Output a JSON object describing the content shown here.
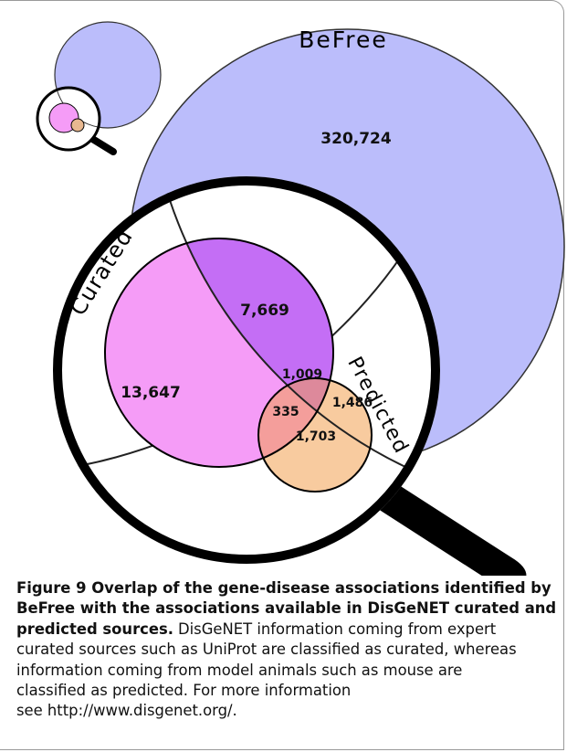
{
  "figure": {
    "labels": {
      "befree": "BeFree",
      "curated": "Curated",
      "predicted": "Predicted"
    },
    "regions": {
      "befree_only": "320,724",
      "befree_curated": "7,669",
      "curated_only": "13,647",
      "all_three": "1,009",
      "befree_predicted": "1,486",
      "curated_predicted": "335",
      "predicted_only": "1,703"
    },
    "caption": {
      "title_lines": [
        "Figure 9 Overlap of the gene-disease associations identified by",
        "BeFree with the associations available in DisGeNET curated and",
        "predicted sources."
      ],
      "body_lines": [
        "DisGeNET information coming from expert",
        "curated sources such as UniProt are classified as curated, whereas",
        "information coming from model animals such as mouse are",
        "classified as predicted. For more information",
        "see http://www.disgenet.org/."
      ]
    }
  }
}
